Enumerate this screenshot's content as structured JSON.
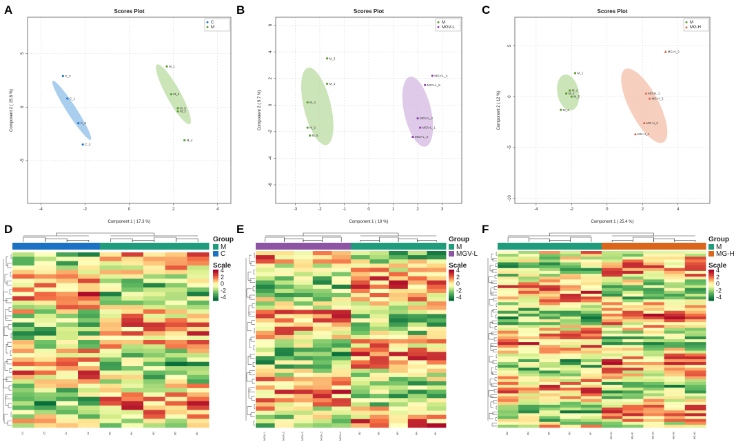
{
  "figure": {
    "panels": [
      "A",
      "B",
      "C",
      "D",
      "E",
      "F"
    ]
  },
  "chart_data": [
    {
      "id": "A",
      "type": "scatter",
      "title": "Scores Plot",
      "xlabel": "Component 1 ( 17.3 %)",
      "ylabel": "Component 2 ( 15.8 %)",
      "xlim": [
        -4.6,
        4.6
      ],
      "ylim": [
        -9.0,
        8.4
      ],
      "xticks": [
        -4,
        -2,
        0,
        2,
        4
      ],
      "yticks": [
        -5,
        0,
        5
      ],
      "legend": [
        "C",
        "M"
      ],
      "legend_position": "top-right",
      "series": [
        {
          "name": "C",
          "color": "#1f78c8",
          "fill": "#8ebfe8",
          "marker": "circle",
          "ellipse": {
            "cx": -2.6,
            "cy": -0.3,
            "rx": 6.5,
            "ry": 0.22,
            "angle_deg": 122
          },
          "points": [
            {
              "label": "C_2",
              "x": -3.0,
              "y": 2.9
            },
            {
              "label": "C_1",
              "x": -2.8,
              "y": 0.8
            },
            {
              "label": "C_5",
              "x": -2.3,
              "y": -1.5
            },
            {
              "label": "C_3",
              "x": -2.1,
              "y": -3.5
            }
          ]
        },
        {
          "name": "M",
          "color": "#5aa02c",
          "fill": "#b9dba0",
          "marker": "circle",
          "ellipse": {
            "cx": 2.0,
            "cy": 1.2,
            "rx": 6.3,
            "ry": 0.32,
            "angle_deg": 118
          },
          "points": [
            {
              "label": "M_1",
              "x": 1.7,
              "y": 3.8
            },
            {
              "label": "M_3",
              "x": 1.9,
              "y": 1.2
            },
            {
              "label": "M_5",
              "x": 2.2,
              "y": -0.1
            },
            {
              "label": "M_2",
              "x": 2.2,
              "y": -0.4
            },
            {
              "label": "M_4",
              "x": 2.5,
              "y": -3.1
            }
          ]
        }
      ]
    },
    {
      "id": "B",
      "type": "scatter",
      "title": "Scores Plot",
      "xlabel": "Component 1 ( 19 %)",
      "ylabel": "Component 2 ( 9.7 %)",
      "xlim": [
        -3.8,
        3.8
      ],
      "ylim": [
        -7.4,
        6.6
      ],
      "xticks": [
        -3,
        -2,
        -1,
        0,
        1,
        2,
        3
      ],
      "yticks": [
        -6,
        -4,
        -2,
        0,
        2,
        4,
        6
      ],
      "legend": [
        "M",
        "MGV-L"
      ],
      "legend_position": "top-right",
      "series": [
        {
          "name": "M",
          "color": "#5aa02c",
          "fill": "#b9dba0",
          "marker": "circle",
          "ellipse": {
            "cx": -2.1,
            "cy": -0.1,
            "rx": 6.0,
            "ry": 0.55,
            "angle_deg": 105
          },
          "points": [
            {
              "label": "M_3",
              "x": -1.7,
              "y": 3.5
            },
            {
              "label": "M_1",
              "x": -1.7,
              "y": 1.6
            },
            {
              "label": "M_4",
              "x": -2.5,
              "y": 0.2
            },
            {
              "label": "M_2",
              "x": -2.5,
              "y": -1.7
            },
            {
              "label": "M_5",
              "x": -2.4,
              "y": -2.3
            }
          ]
        },
        {
          "name": "MGV-L",
          "color": "#8e44ad",
          "fill": "#d4b8e1",
          "marker": "circle",
          "ellipse": {
            "cx": 2.0,
            "cy": -0.5,
            "rx": 5.4,
            "ry": 0.55,
            "angle_deg": 104
          },
          "points": [
            {
              "label": "MGV-L_4",
              "x": 2.6,
              "y": 2.2
            },
            {
              "label": "MGV-L_5",
              "x": 2.3,
              "y": 1.5
            },
            {
              "label": "MGV-L_2",
              "x": 2.0,
              "y": -1.0
            },
            {
              "label": "MGV-L_1",
              "x": 2.1,
              "y": -1.7
            },
            {
              "label": "MGV-L_3",
              "x": 1.8,
              "y": -2.4
            }
          ]
        }
      ]
    },
    {
      "id": "C",
      "type": "scatter",
      "title": "Scores Plot",
      "xlabel": "Component 1 ( 25.4 %)",
      "ylabel": "Component 2 ( 12 %)",
      "xlim": [
        -5.2,
        5.8
      ],
      "ylim": [
        -10.5,
        7.8
      ],
      "xticks": [
        -4,
        -2,
        0,
        2,
        4
      ],
      "yticks": [
        -10,
        -5,
        0,
        5
      ],
      "legend": [
        "M",
        "MG-H"
      ],
      "legend_position": "top-right",
      "series": [
        {
          "name": "M",
          "color": "#5aa02c",
          "fill": "#b9dba0",
          "marker": "circle",
          "ellipse": {
            "cx": -2.2,
            "cy": 0.4,
            "rx": 3.6,
            "ry": 0.6,
            "angle_deg": 105
          },
          "points": [
            {
              "label": "M_1",
              "x": -1.8,
              "y": 2.3
            },
            {
              "label": "M_2",
              "x": -2.1,
              "y": 0.6
            },
            {
              "label": "M_4",
              "x": -2.3,
              "y": 0.3
            },
            {
              "label": "M_5",
              "x": -2.0,
              "y": 0.0
            },
            {
              "label": "M_3",
              "x": -2.6,
              "y": -1.3
            }
          ]
        },
        {
          "name": "MG-H",
          "color": "#e05a3a",
          "fill": "#f4bfaa",
          "marker": "triangle",
          "ellipse": {
            "cx": 2.1,
            "cy": -0.9,
            "rx": 8.4,
            "ry": 0.8,
            "angle_deg": 122
          },
          "points": [
            {
              "label": "MG-H_2",
              "x": 3.3,
              "y": 4.4
            },
            {
              "label": "MG-H_1",
              "x": 2.2,
              "y": 0.3
            },
            {
              "label": "MG-H_5",
              "x": 2.4,
              "y": -0.2
            },
            {
              "label": "MG-H_3",
              "x": 2.1,
              "y": -2.6
            },
            {
              "label": "MG-H_4",
              "x": 1.6,
              "y": -3.7
            }
          ]
        }
      ]
    },
    {
      "id": "D",
      "type": "heatmap",
      "groups": [
        {
          "name": "C",
          "color": "#1b72c4"
        },
        {
          "name": "M",
          "color": "#1e9c7c"
        }
      ],
      "legend_title": "Group",
      "legend_items": [
        "M",
        "C"
      ],
      "legend_colors": [
        "#1e9c7c",
        "#1b72c4"
      ],
      "columns": [
        "C4",
        "C5",
        "C1",
        "C2",
        "M2",
        "M4",
        "M3",
        "M5",
        "M1"
      ],
      "column_groups": [
        "C",
        "C",
        "C",
        "C",
        "M",
        "M",
        "M",
        "M",
        "M"
      ],
      "n_rows": 40,
      "seed": 11,
      "scale": {
        "title": "Scale",
        "ticks": [
          "4",
          "2",
          "0",
          "-2",
          "-4"
        ],
        "range": [
          -4,
          4
        ]
      }
    },
    {
      "id": "E",
      "type": "heatmap",
      "groups": [
        {
          "name": "MGV-L",
          "color": "#8e54a4"
        },
        {
          "name": "M",
          "color": "#1e9c7c"
        }
      ],
      "legend_title": "Group",
      "legend_items": [
        "M",
        "MGV-L"
      ],
      "legend_colors": [
        "#1e9c7c",
        "#8e54a4"
      ],
      "columns": [
        "MGV-L1",
        "MGV-L5",
        "MGV-L2",
        "MGV-L3",
        "MGV-L4",
        "M2",
        "M5",
        "M3",
        "M4",
        "M1"
      ],
      "column_groups": [
        "MGV-L",
        "MGV-L",
        "MGV-L",
        "MGV-L",
        "MGV-L",
        "M",
        "M",
        "M",
        "M",
        "M"
      ],
      "n_rows": 42,
      "seed": 27,
      "scale": {
        "title": "Scale",
        "ticks": [
          "4",
          "2",
          "0",
          "-2",
          "-4"
        ],
        "range": [
          -4,
          4
        ]
      }
    },
    {
      "id": "F",
      "type": "heatmap",
      "groups": [
        {
          "name": "M",
          "color": "#1e9c7c"
        },
        {
          "name": "MG-H",
          "color": "#d9661b"
        }
      ],
      "legend_title": "Group",
      "legend_items": [
        "M",
        "MG-H"
      ],
      "legend_colors": [
        "#1e9c7c",
        "#d9661b"
      ],
      "columns": [
        "M2",
        "M4",
        "M5",
        "M3",
        "M1",
        "MG-H4",
        "MG-H1",
        "MG-H3",
        "MG-H5",
        "MG-H2"
      ],
      "column_groups": [
        "M",
        "M",
        "M",
        "M",
        "M",
        "MG-H",
        "MG-H",
        "MG-H",
        "MG-H",
        "MG-H"
      ],
      "n_rows": 62,
      "seed": 53,
      "scale": {
        "title": "Scale",
        "ticks": [
          "4",
          "2",
          "0",
          "-2",
          "-4"
        ],
        "range": [
          -4,
          4
        ]
      }
    }
  ]
}
